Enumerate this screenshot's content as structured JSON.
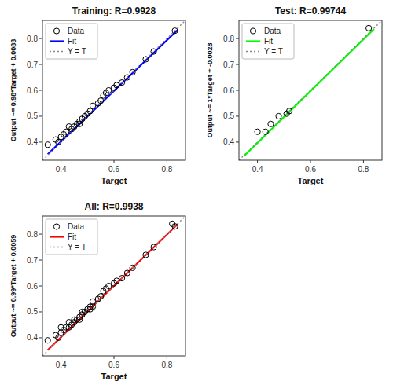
{
  "chart_data": [
    {
      "type": "scatter",
      "title": "Training: R=0.9928",
      "x_label": "Target",
      "y_label": "Output ~= 0.98*Target + 0.0083",
      "xlim": [
        0.33,
        0.87
      ],
      "ylim": [
        0.33,
        0.87
      ],
      "xticks": [
        0.4,
        0.6,
        0.8
      ],
      "yticks": [
        0.4,
        0.5,
        0.6,
        0.7,
        0.8
      ],
      "grid": false,
      "legend": "upper left",
      "series": [
        {
          "name": "Data",
          "type": "scatter",
          "color": "black",
          "marker": "circle",
          "x": [
            0.35,
            0.38,
            0.39,
            0.4,
            0.41,
            0.42,
            0.43,
            0.44,
            0.45,
            0.46,
            0.47,
            0.47,
            0.48,
            0.49,
            0.5,
            0.51,
            0.52,
            0.54,
            0.55,
            0.56,
            0.57,
            0.58,
            0.6,
            0.61,
            0.63,
            0.65,
            0.67,
            0.72,
            0.75,
            0.83
          ],
          "values": [
            0.39,
            0.41,
            0.4,
            0.42,
            0.43,
            0.44,
            0.46,
            0.45,
            0.46,
            0.47,
            0.47,
            0.48,
            0.49,
            0.5,
            0.51,
            0.52,
            0.54,
            0.55,
            0.56,
            0.58,
            0.59,
            0.6,
            0.61,
            0.62,
            0.63,
            0.65,
            0.67,
            0.72,
            0.75,
            0.83
          ]
        },
        {
          "name": "Fit",
          "type": "line",
          "color": "blue",
          "line_style": "solid",
          "x": [
            0.35,
            0.84
          ],
          "values": [
            0.353,
            0.833
          ]
        },
        {
          "name": "Y = T",
          "type": "line",
          "color": "#888888",
          "line_style": "dotted",
          "x": [
            0.33,
            0.87
          ],
          "values": [
            0.33,
            0.87
          ]
        }
      ]
    },
    {
      "type": "scatter",
      "title": "Test: R=0.99744",
      "x_label": "Target",
      "y_label": "Output ~= 1*Target + -0.0028",
      "xlim": [
        0.33,
        0.87
      ],
      "ylim": [
        0.33,
        0.87
      ],
      "xticks": [
        0.4,
        0.6,
        0.8
      ],
      "yticks": [
        0.4,
        0.5,
        0.6,
        0.7,
        0.8
      ],
      "grid": false,
      "legend": "upper left",
      "series": [
        {
          "name": "Data",
          "type": "scatter",
          "color": "black",
          "marker": "circle",
          "x": [
            0.4,
            0.43,
            0.45,
            0.48,
            0.51,
            0.52,
            0.82
          ],
          "values": [
            0.44,
            0.44,
            0.47,
            0.5,
            0.51,
            0.52,
            0.84
          ]
        },
        {
          "name": "Fit",
          "type": "line",
          "color": "lime",
          "line_style": "solid",
          "x": [
            0.35,
            0.84
          ],
          "values": [
            0.347,
            0.837
          ]
        },
        {
          "name": "Y = T",
          "type": "line",
          "color": "#888888",
          "line_style": "dotted",
          "x": [
            0.33,
            0.87
          ],
          "values": [
            0.33,
            0.87
          ]
        }
      ]
    },
    {
      "type": "scatter",
      "title": "All: R=0.9938",
      "x_label": "Target",
      "y_label": "Output ~= 0.99*Target + 0.0059",
      "xlim": [
        0.33,
        0.87
      ],
      "ylim": [
        0.33,
        0.87
      ],
      "xticks": [
        0.4,
        0.6,
        0.8
      ],
      "yticks": [
        0.4,
        0.5,
        0.6,
        0.7,
        0.8
      ],
      "grid": false,
      "legend": "upper left",
      "series": [
        {
          "name": "Data",
          "type": "scatter",
          "color": "black",
          "marker": "circle",
          "x": [
            0.35,
            0.38,
            0.39,
            0.4,
            0.41,
            0.42,
            0.43,
            0.44,
            0.45,
            0.46,
            0.47,
            0.47,
            0.48,
            0.49,
            0.5,
            0.51,
            0.52,
            0.54,
            0.55,
            0.56,
            0.57,
            0.58,
            0.6,
            0.61,
            0.63,
            0.65,
            0.67,
            0.72,
            0.75,
            0.83,
            0.4,
            0.43,
            0.45,
            0.48,
            0.51,
            0.52,
            0.82
          ],
          "values": [
            0.39,
            0.41,
            0.4,
            0.42,
            0.43,
            0.44,
            0.46,
            0.45,
            0.46,
            0.47,
            0.47,
            0.48,
            0.49,
            0.5,
            0.51,
            0.52,
            0.54,
            0.55,
            0.56,
            0.58,
            0.59,
            0.6,
            0.61,
            0.62,
            0.63,
            0.65,
            0.67,
            0.72,
            0.75,
            0.83,
            0.44,
            0.44,
            0.47,
            0.5,
            0.51,
            0.52,
            0.84
          ]
        },
        {
          "name": "Fit",
          "type": "line",
          "color": "red",
          "line_style": "solid",
          "x": [
            0.35,
            0.84
          ],
          "values": [
            0.353,
            0.838
          ]
        },
        {
          "name": "Y = T",
          "type": "line",
          "color": "#888888",
          "line_style": "dotted",
          "x": [
            0.33,
            0.87
          ],
          "values": [
            0.33,
            0.87
          ]
        }
      ]
    }
  ]
}
